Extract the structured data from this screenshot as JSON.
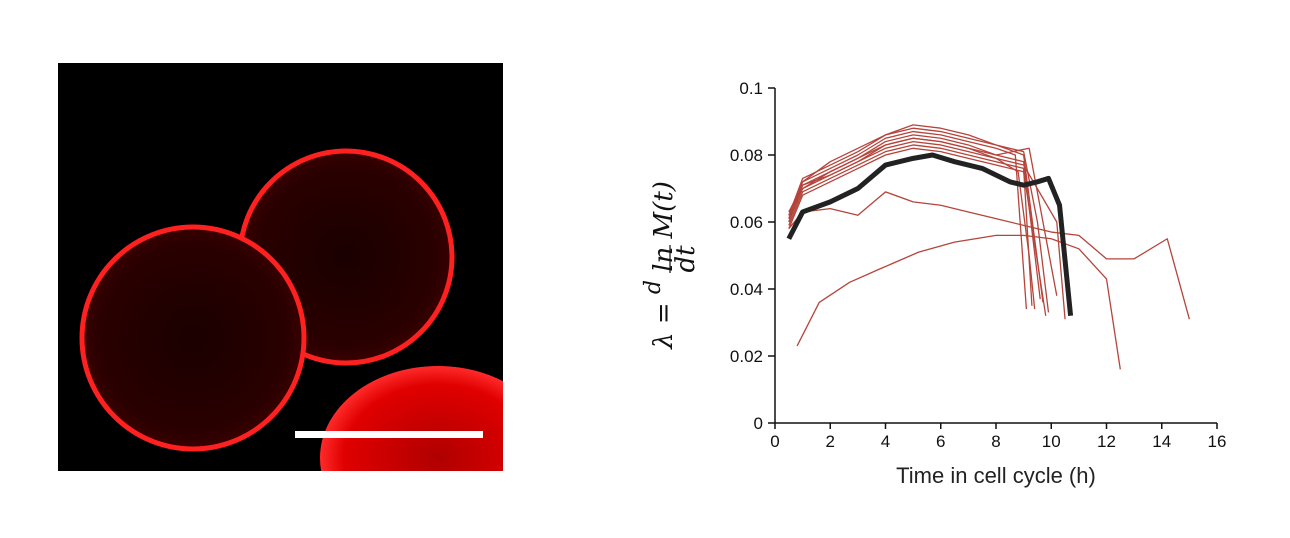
{
  "colors": {
    "membrane": "#ff1f1f",
    "background_micrograph": "#000000",
    "scale_bar": "#ffffff",
    "single_cell_traces": "#b5443b",
    "mean_trace": "#222222"
  },
  "chart_data": {
    "type": "line",
    "title": "",
    "xlabel": "Time in cell cycle (h)",
    "ylabel": "λ = (d/dt) ln M(t)",
    "xlim": [
      0,
      16
    ],
    "ylim": [
      0,
      0.1
    ],
    "xticks": [
      0,
      2,
      4,
      6,
      8,
      10,
      12,
      14,
      16
    ],
    "yticks": [
      0,
      0.02,
      0.04,
      0.06,
      0.08,
      0.1
    ],
    "xtick_labels": [
      "0",
      "2",
      "4",
      "6",
      "8",
      "10",
      "12",
      "14",
      "16"
    ],
    "ytick_labels": [
      "0",
      "0.02",
      "0.04",
      "0.06",
      "0.08",
      "0.1"
    ],
    "grid": false,
    "series": [
      {
        "x": [
          0.8,
          1.6,
          2.7,
          3.8,
          5.2,
          6.5,
          8.0,
          9.0,
          10.0,
          11.0,
          12.0,
          12.5
        ],
        "y": [
          0.023,
          0.036,
          0.042,
          0.046,
          0.051,
          0.054,
          0.056,
          0.056,
          0.055,
          0.052,
          0.043,
          0.016
        ]
      },
      {
        "x": [
          0.5,
          1.0,
          2.0,
          3.0,
          4.0,
          5.0,
          6.0,
          7.0,
          8.0,
          9.0,
          10.0,
          11.0,
          12.0,
          13.0,
          14.2,
          15.0
        ],
        "y": [
          0.058,
          0.063,
          0.064,
          0.062,
          0.069,
          0.066,
          0.065,
          0.063,
          0.061,
          0.059,
          0.057,
          0.056,
          0.049,
          0.049,
          0.055,
          0.031
        ]
      },
      {
        "x": [
          0.5,
          1.0,
          2.0,
          3.0,
          4.0,
          5.0,
          6.0,
          7.0,
          8.0,
          8.8,
          9.2,
          9.4
        ],
        "y": [
          0.06,
          0.071,
          0.074,
          0.078,
          0.083,
          0.085,
          0.084,
          0.082,
          0.079,
          0.075,
          0.05,
          0.034
        ]
      },
      {
        "x": [
          0.5,
          1.0,
          2.0,
          3.0,
          4.0,
          5.0,
          6.0,
          7.0,
          8.0,
          9.0,
          9.5,
          9.9
        ],
        "y": [
          0.061,
          0.072,
          0.078,
          0.082,
          0.086,
          0.088,
          0.087,
          0.085,
          0.083,
          0.081,
          0.06,
          0.033
        ]
      },
      {
        "x": [
          0.5,
          1.0,
          2.0,
          3.0,
          4.0,
          5.0,
          6.0,
          7.0,
          8.0,
          9.0,
          9.6
        ],
        "y": [
          0.062,
          0.07,
          0.075,
          0.079,
          0.084,
          0.086,
          0.085,
          0.083,
          0.08,
          0.078,
          0.037
        ]
      },
      {
        "x": [
          0.5,
          1.0,
          2.0,
          3.0,
          4.0,
          5.0,
          6.0,
          7.0,
          8.0,
          9.0,
          9.3
        ],
        "y": [
          0.059,
          0.069,
          0.073,
          0.077,
          0.081,
          0.083,
          0.082,
          0.08,
          0.078,
          0.076,
          0.035
        ]
      },
      {
        "x": [
          0.5,
          1.0,
          2.0,
          3.0,
          4.0,
          5.0,
          6.0,
          7.0,
          8.0,
          8.7,
          9.1
        ],
        "y": [
          0.061,
          0.072,
          0.076,
          0.08,
          0.085,
          0.087,
          0.086,
          0.084,
          0.082,
          0.08,
          0.034
        ]
      },
      {
        "x": [
          0.5,
          1.0,
          2.0,
          3.0,
          4.0,
          5.0,
          6.0,
          7.0,
          8.0,
          9.0,
          10.2,
          10.5
        ],
        "y": [
          0.06,
          0.07,
          0.074,
          0.078,
          0.082,
          0.084,
          0.083,
          0.081,
          0.079,
          0.077,
          0.06,
          0.031
        ]
      },
      {
        "x": [
          0.5,
          1.0,
          2.0,
          3.0,
          4.0,
          5.0,
          6.0,
          7.0,
          8.0,
          9.0,
          9.7
        ],
        "y": [
          0.062,
          0.073,
          0.077,
          0.081,
          0.086,
          0.089,
          0.088,
          0.086,
          0.083,
          0.08,
          0.036
        ]
      },
      {
        "x": [
          0.5,
          1.0,
          2.0,
          3.0,
          4.0,
          5.0,
          6.0,
          7.0,
          8.0,
          9.0,
          9.8
        ],
        "y": [
          0.058,
          0.068,
          0.072,
          0.076,
          0.08,
          0.082,
          0.081,
          0.079,
          0.077,
          0.075,
          0.032
        ]
      },
      {
        "x": [
          0.5,
          1.0,
          2.0,
          3.0,
          4.0,
          5.0,
          6.0,
          7.0,
          8.0,
          9.2,
          10.2
        ],
        "y": [
          0.063,
          0.071,
          0.075,
          0.079,
          0.083,
          0.085,
          0.084,
          0.082,
          0.08,
          0.082,
          0.038
        ]
      },
      {
        "mean": true,
        "x": [
          0.5,
          1.0,
          2.0,
          3.0,
          4.0,
          5.0,
          5.7,
          6.5,
          7.5,
          8.5,
          9.0,
          9.5,
          9.9,
          10.3,
          10.7
        ],
        "y": [
          0.055,
          0.063,
          0.066,
          0.07,
          0.077,
          0.079,
          0.08,
          0.078,
          0.076,
          0.072,
          0.071,
          0.072,
          0.073,
          0.065,
          0.032
        ]
      }
    ]
  }
}
